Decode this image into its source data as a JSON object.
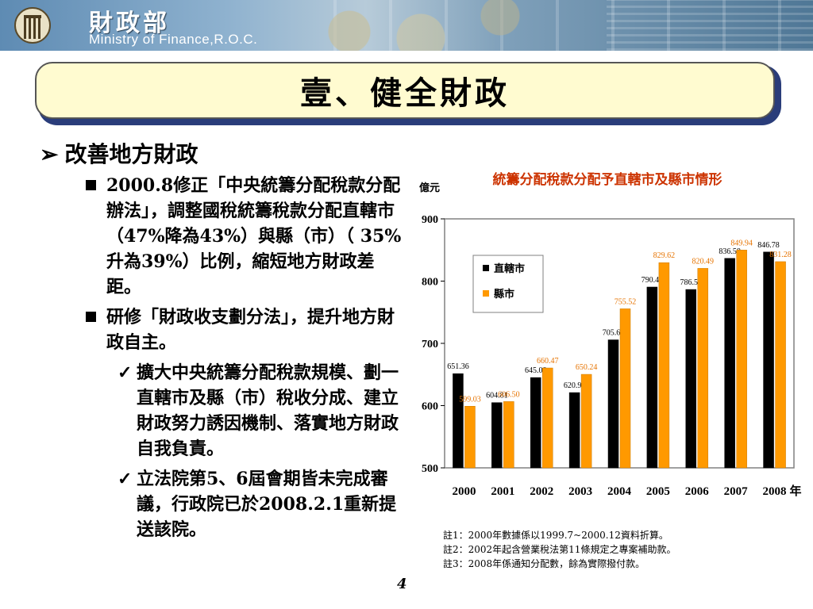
{
  "header": {
    "org_cn": "財政部",
    "org_en": "Ministry of Finance,R.O.C."
  },
  "title": "壹、健全財政",
  "section": {
    "arrow": "➢",
    "heading": "改善地方財政"
  },
  "bullets": [
    {
      "text": "2000.8修正「中央統籌分配稅款分配辦法」，調整國稅統籌稅款分配直轄市（47%降為43%）與縣（市）（ 35%升為39%）比例，縮短地方財政差距。"
    },
    {
      "text": "研修「財政收支劃分法」，提升地方財政自主。",
      "subs": [
        "擴大中央統籌分配稅款規模、劃一直轄市及縣（市）稅收分成、建立財政努力誘因機制、落實地方財政自我負責。",
        "立法院第5、6屆會期皆未完成審議，行政院已於2008.2.1重新提送該院。"
      ]
    }
  ],
  "check_glyph": "✓",
  "chart_data": {
    "type": "bar",
    "title": "統籌分配稅款分配予直轄市及縣市情形",
    "ylabel": "億元",
    "xlabel": "年",
    "categories": [
      "2000",
      "2001",
      "2002",
      "2003",
      "2004",
      "2005",
      "2006",
      "2007",
      "2008"
    ],
    "ylim": [
      500,
      900
    ],
    "yticks": [
      500,
      600,
      700,
      800,
      900
    ],
    "series": [
      {
        "name": "直轄市",
        "color": "#000000",
        "values": [
          651.36,
          604.81,
          645.08,
          620.93,
          705.67,
          790.48,
          786.56,
          836.58,
          846.78
        ]
      },
      {
        "name": "縣市",
        "color": "#ff9900",
        "values": [
          599.03,
          606.5,
          660.47,
          650.24,
          755.52,
          829.62,
          820.49,
          849.94,
          831.28
        ]
      }
    ],
    "value_labels": {
      "series0": [
        "651.36",
        "604.81",
        "645.08",
        "620.93",
        "705.67",
        "790.48",
        "786.56",
        "836.58",
        "846.78"
      ],
      "series1": [
        "599.03",
        "606.50",
        "660.47",
        "650.24",
        "755.52",
        "829.62",
        "820.49",
        "849.94",
        "831.28"
      ]
    },
    "legend_position": "top-left",
    "grid": false
  },
  "notes": [
    "註1：2000年數據係以1999.7~2000.12資料折算。",
    "註2：2002年起含營業稅法第11條規定之專案補助款。",
    "註3：2008年係通知分配數，餘為實際撥付款。"
  ],
  "page_number": "4"
}
